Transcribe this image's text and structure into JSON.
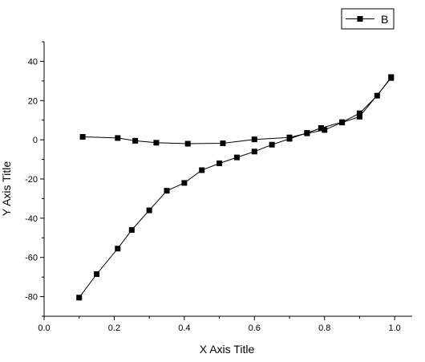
{
  "chart_data": {
    "type": "line",
    "xlabel": "X Axis Title",
    "ylabel": "Y Axis Title",
    "xlim": [
      0.0,
      1.05
    ],
    "ylim": [
      -90,
      50
    ],
    "x_ticks": [
      0.0,
      0.2,
      0.4,
      0.6,
      0.8,
      1.0
    ],
    "x_tick_labels": [
      "0.0",
      "0.2",
      "0.4",
      "0.6",
      "0.8",
      "1.0"
    ],
    "y_ticks": [
      -80,
      -60,
      -40,
      -20,
      0,
      20,
      40
    ],
    "y_tick_labels": [
      "-80",
      "-60",
      "-40",
      "-20",
      "0",
      "20",
      "40"
    ],
    "grid": false,
    "legend_position": "top-right",
    "series": [
      {
        "name": "B",
        "color": "#000000",
        "marker": "square",
        "points": [
          [
            0.11,
            1.5
          ],
          [
            0.21,
            0.9
          ],
          [
            0.26,
            -0.5
          ],
          [
            0.32,
            -1.5
          ],
          [
            0.41,
            -2.0
          ],
          [
            0.51,
            -1.8
          ],
          [
            0.6,
            0.2
          ],
          [
            0.7,
            1.2
          ],
          [
            0.75,
            3.3
          ],
          [
            0.8,
            5.0
          ],
          [
            0.85,
            8.8
          ],
          [
            0.9,
            11.8
          ],
          [
            0.99,
            31.5
          ]
        ]
      },
      {
        "name": "",
        "color": "#000000",
        "marker": "square",
        "points": [
          [
            0.1,
            -80.5
          ],
          [
            0.15,
            -68.5
          ],
          [
            0.21,
            -55.5
          ],
          [
            0.25,
            -46.0
          ],
          [
            0.3,
            -36.0
          ],
          [
            0.35,
            -26.0
          ],
          [
            0.4,
            -22.0
          ],
          [
            0.45,
            -15.5
          ],
          [
            0.5,
            -12.0
          ],
          [
            0.55,
            -9.0
          ],
          [
            0.6,
            -6.0
          ],
          [
            0.65,
            -2.5
          ],
          [
            0.7,
            0.5
          ],
          [
            0.75,
            3.5
          ],
          [
            0.79,
            6.0
          ],
          [
            0.85,
            9.0
          ],
          [
            0.9,
            13.5
          ],
          [
            0.95,
            22.5
          ],
          [
            0.99,
            32.0
          ]
        ]
      }
    ]
  }
}
